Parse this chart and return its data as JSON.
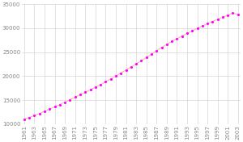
{
  "years": [
    1961,
    1962,
    1963,
    1964,
    1965,
    1966,
    1967,
    1968,
    1969,
    1970,
    1971,
    1972,
    1973,
    1974,
    1975,
    1976,
    1977,
    1978,
    1979,
    1980,
    1981,
    1982,
    1983,
    1984,
    1985,
    1986,
    1987,
    1988,
    1989,
    1990,
    1991,
    1992,
    1993,
    1994,
    1995,
    1996,
    1997,
    1998,
    1999,
    2000,
    2001,
    2002,
    2003
  ],
  "population": [
    11024,
    11386,
    11789,
    12218,
    12666,
    13128,
    13601,
    14087,
    14585,
    15098,
    15616,
    16139,
    16654,
    17168,
    17692,
    18241,
    18817,
    19415,
    20028,
    20654,
    21285,
    21919,
    22558,
    23211,
    23884,
    24581,
    25303,
    26010,
    26652,
    27255,
    27826,
    28380,
    28920,
    29446,
    29956,
    30454,
    30942,
    31411,
    31861,
    32298,
    32742,
    33182,
    32818
  ],
  "line_color": "#FFB0B0",
  "dot_color": "#FF00FF",
  "bg_color": "#FFFFFF",
  "grid_color": "#CCCCCC",
  "tick_color": "#888888",
  "ylim": [
    10000,
    35000
  ],
  "yticks": [
    10000,
    15000,
    20000,
    25000,
    30000,
    35000
  ],
  "xtick_years": [
    1961,
    1963,
    1965,
    1967,
    1969,
    1971,
    1973,
    1975,
    1977,
    1979,
    1981,
    1983,
    1985,
    1987,
    1989,
    1991,
    1993,
    1995,
    1997,
    1999,
    2001,
    2003
  ],
  "tick_fontsize": 5,
  "dot_size": 5,
  "line_width": 0.8
}
